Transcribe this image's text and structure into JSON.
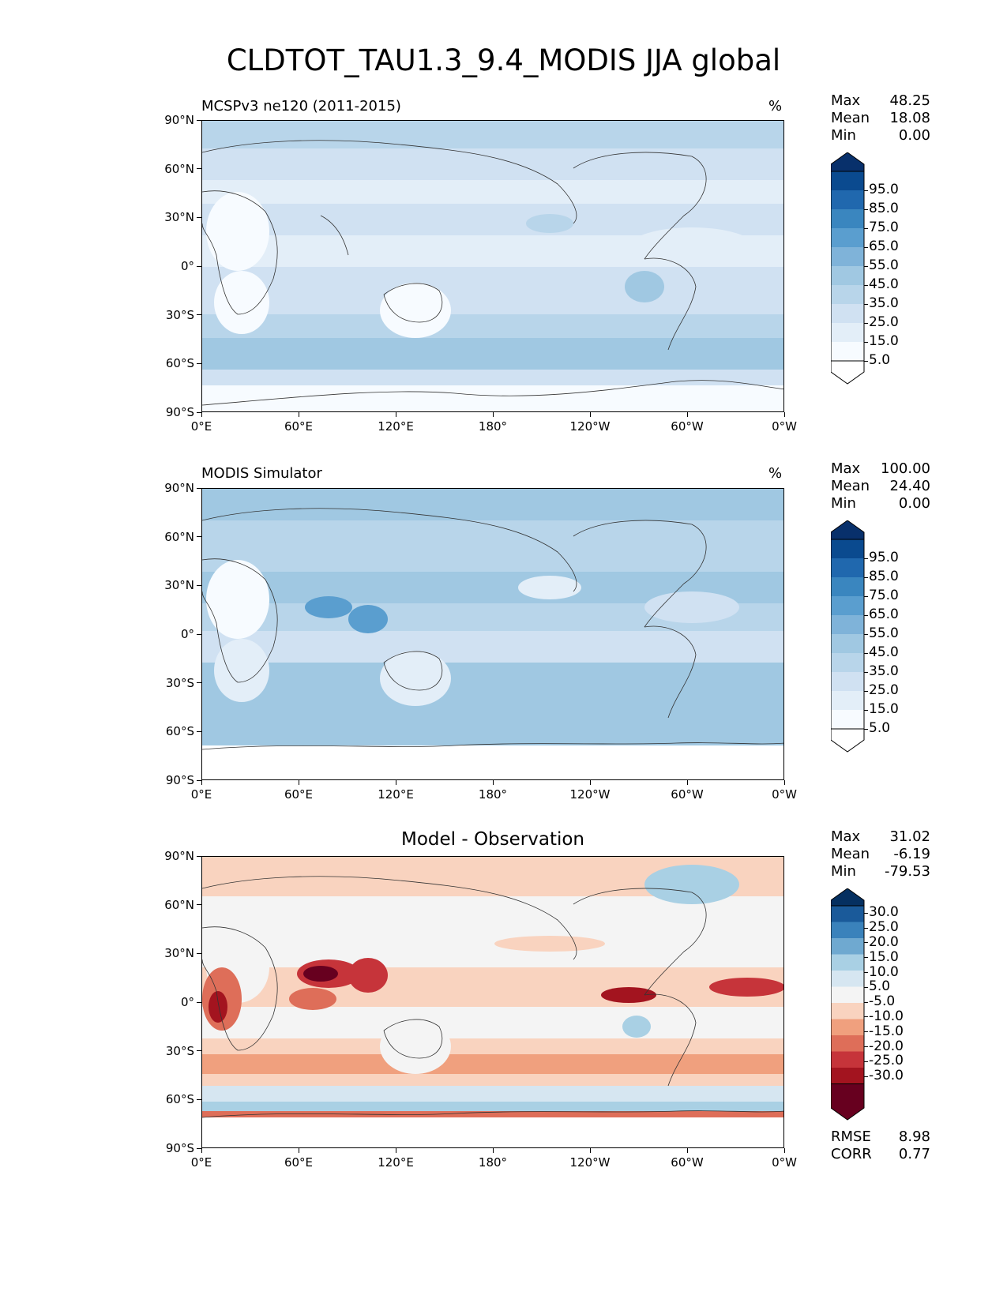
{
  "title": "CLDTOT_TAU1.3_9.4_MODIS JJA global",
  "axes": {
    "lat_ticks": [
      "90°N",
      "60°N",
      "30°N",
      "0°",
      "30°S",
      "60°S",
      "90°S"
    ],
    "lon_ticks": [
      "0°E",
      "60°E",
      "120°E",
      "180°",
      "120°W",
      "60°W",
      "0°W"
    ]
  },
  "panels": [
    {
      "label": "MCSPv3 ne120 (2011-2015)",
      "unit": "%",
      "stats": {
        "max_label": "Max",
        "max": "48.25",
        "mean_label": "Mean",
        "mean": "18.08",
        "min_label": "Min",
        "min": "0.00"
      },
      "colorbar_labels": [
        "95.0",
        "85.0",
        "75.0",
        "65.0",
        "55.0",
        "45.0",
        "35.0",
        "25.0",
        "15.0",
        "5.0"
      ]
    },
    {
      "label": "MODIS Simulator",
      "unit": "%",
      "stats": {
        "max_label": "Max",
        "max": "100.00",
        "mean_label": "Mean",
        "mean": "24.40",
        "min_label": "Min",
        "min": "0.00"
      },
      "colorbar_labels": [
        "95.0",
        "85.0",
        "75.0",
        "65.0",
        "55.0",
        "45.0",
        "35.0",
        "25.0",
        "15.0",
        "5.0"
      ]
    },
    {
      "label": "Model - Observation",
      "stats": {
        "max_label": "Max",
        "max": "31.02",
        "mean_label": "Mean",
        "mean": "-6.19",
        "min_label": "Min",
        "min": "-79.53"
      },
      "colorbar_labels": [
        "30.0",
        "25.0",
        "20.0",
        "15.0",
        "10.0",
        "5.0",
        "-5.0",
        "-10.0",
        "-15.0",
        "-20.0",
        "-25.0",
        "-30.0"
      ],
      "metrics": {
        "rmse_label": "RMSE",
        "rmse": "8.98",
        "corr_label": "CORR",
        "corr": "0.77"
      }
    }
  ],
  "colors": {
    "seq": [
      "#f7fbff",
      "#e3eef8",
      "#d0e1f2",
      "#b8d5ea",
      "#a0c8e2",
      "#7fb3d9",
      "#5a9ecf",
      "#3a86bf",
      "#2068ae",
      "#0a4a8f",
      "#08306b"
    ],
    "div": [
      "#67001f",
      "#a3141f",
      "#c6343a",
      "#de6e59",
      "#f0a07e",
      "#f9d3bf",
      "#f4f4f4",
      "#d6e6f1",
      "#a9d0e4",
      "#6fa9d0",
      "#3a82bb",
      "#1a5a9a",
      "#053061"
    ]
  }
}
